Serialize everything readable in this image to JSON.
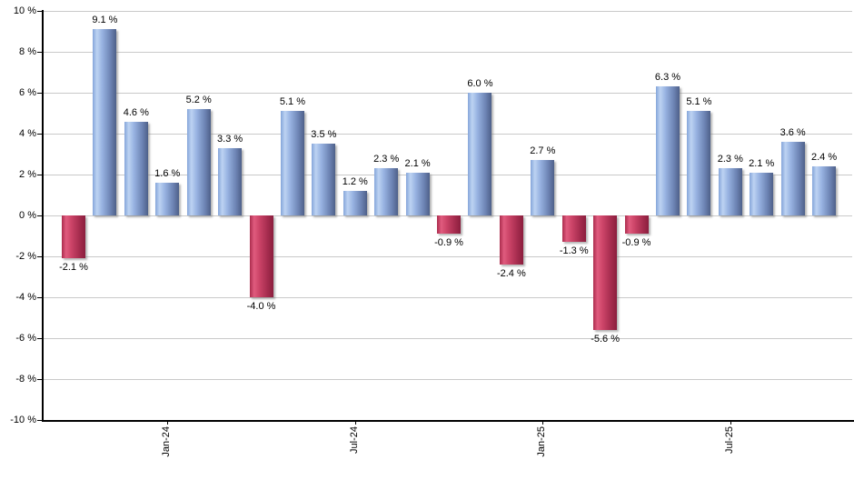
{
  "chart_data": {
    "type": "bar",
    "title": "",
    "xlabel": "",
    "ylabel": "",
    "ylim": [
      -10,
      10
    ],
    "grid": true,
    "bar_count": 25,
    "values": [
      -2.1,
      9.1,
      4.6,
      1.6,
      5.2,
      3.3,
      -4.0,
      5.1,
      3.5,
      1.2,
      2.3,
      2.1,
      -0.9,
      6.0,
      -2.4,
      2.7,
      -1.3,
      -5.6,
      -0.9,
      6.3,
      5.1,
      2.3,
      2.1,
      3.6,
      2.4
    ],
    "value_labels": [
      "-2.1 %",
      "9.1 %",
      "4.6 %",
      "1.6 %",
      "5.2 %",
      "3.3 %",
      "-4.0 %",
      "5.1 %",
      "3.5 %",
      "1.2 %",
      "2.3 %",
      "2.1 %",
      "-0.9 %",
      "6.0 %",
      "-2.4 %",
      "2.7 %",
      "-1.3 %",
      "-5.6 %",
      "-0.9 %",
      "6.3 %",
      "5.1 %",
      "2.3 %",
      "2.1 %",
      "3.6 %",
      "2.4 %"
    ],
    "y_ticks": [
      {
        "value": 10,
        "label": "10 %"
      },
      {
        "value": 8,
        "label": "8 %"
      },
      {
        "value": 6,
        "label": "6 %"
      },
      {
        "value": 4,
        "label": "4 %"
      },
      {
        "value": 2,
        "label": "2 %"
      },
      {
        "value": 0,
        "label": "0 %"
      },
      {
        "value": -2,
        "label": "-2 %"
      },
      {
        "value": -4,
        "label": "-4 %"
      },
      {
        "value": -6,
        "label": "-6 %"
      },
      {
        "value": -8,
        "label": "-8 %"
      },
      {
        "value": -10,
        "label": "-10 %"
      }
    ],
    "x_ticks": [
      {
        "label": "Jan-24",
        "bar_index": 3
      },
      {
        "label": "Jul-24",
        "bar_index": 9
      },
      {
        "label": "Jan-25",
        "bar_index": 15
      },
      {
        "label": "Jul-25",
        "bar_index": 21
      }
    ],
    "legend": null,
    "colors": {
      "positive_fill_light": "#bdd3f2",
      "positive_fill_mid": "#85a5da",
      "positive_fill_dark": "#4e6089",
      "negative_fill_light": "#e05b7e",
      "negative_fill_mid": "#cc4468",
      "negative_fill_dark": "#8b1e3e",
      "gridline": "#c9c9c9",
      "axis": "#000000",
      "background": "#ffffff"
    }
  }
}
